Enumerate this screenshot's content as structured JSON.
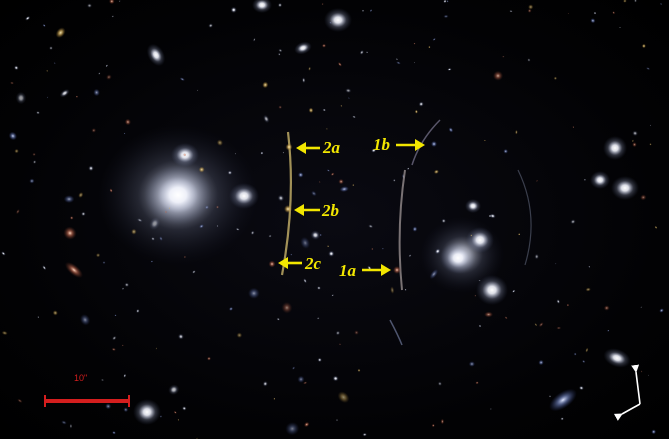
{
  "image_labels": {
    "label_2a": "2a",
    "label_2b": "2b",
    "label_2c": "2c",
    "label_1a": "1a",
    "label_1b": "1b",
    "scale_bar": "10\""
  },
  "colors": {
    "label_yellow": "#f2e600",
    "scale_bar_red": "#d41e1e",
    "compass_white": "#ffffff"
  },
  "icons": {
    "compass": "north-east-compass-icon"
  }
}
